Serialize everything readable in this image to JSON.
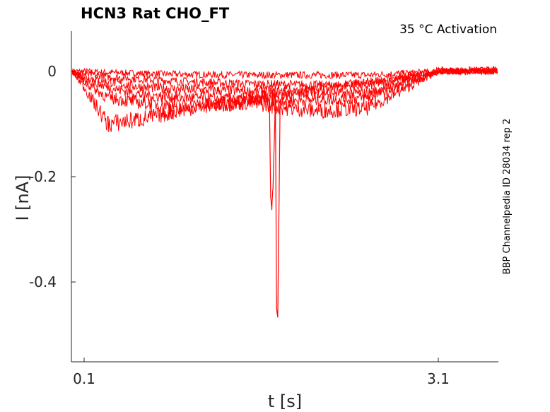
{
  "chart_data": {
    "type": "line",
    "title": "HCN3  Rat  CHO_FT",
    "annotation": "35 °C  Activation",
    "side_label": "BBP Channelpedia ID 28034 rep 2",
    "xlabel": "t [s]",
    "ylabel": "I [nA]",
    "xlim": [
      -0.0,
      3.6
    ],
    "ylim": [
      -0.55,
      0.08
    ],
    "xticks": [
      0.1,
      3.1
    ],
    "xtick_labels": [
      "0.1",
      "3.1"
    ],
    "yticks": [
      0,
      -0.2,
      -0.4
    ],
    "ytick_labels": [
      "0",
      "-0.2",
      "-0.4"
    ],
    "grid": false,
    "line_color": "#ff0000",
    "series": [
      {
        "x": [
          0.0,
          0.1,
          0.3,
          0.6,
          1.0,
          1.5,
          2.0,
          2.5,
          3.1,
          3.6
        ],
        "y": [
          0.0,
          0.0,
          -0.002,
          -0.004,
          -0.006,
          -0.007,
          -0.007,
          -0.007,
          0.0,
          0.0
        ]
      },
      {
        "x": [
          0.0,
          0.1,
          0.3,
          0.6,
          1.0,
          1.5,
          2.0,
          2.5,
          3.1,
          3.6
        ],
        "y": [
          0.0,
          -0.005,
          -0.01,
          -0.015,
          -0.02,
          -0.024,
          -0.026,
          -0.028,
          0.002,
          0.003
        ]
      },
      {
        "x": [
          0.0,
          0.1,
          0.3,
          0.6,
          1.0,
          1.5,
          2.0,
          2.5,
          3.1,
          3.6
        ],
        "y": [
          0.0,
          -0.01,
          -0.02,
          -0.03,
          -0.035,
          -0.038,
          -0.04,
          -0.042,
          0.0,
          0.002
        ]
      },
      {
        "x": [
          0.0,
          0.1,
          0.3,
          0.6,
          1.0,
          1.5,
          2.0,
          2.5,
          3.1,
          3.6
        ],
        "y": [
          0.0,
          -0.015,
          -0.03,
          -0.045,
          -0.05,
          -0.055,
          -0.055,
          -0.05,
          0.0,
          0.0
        ]
      },
      {
        "x": [
          0.0,
          0.1,
          0.3,
          0.6,
          0.9,
          1.2,
          1.5,
          1.8,
          2.1,
          2.5,
          3.1,
          3.6
        ],
        "y": [
          0.0,
          -0.02,
          -0.05,
          -0.06,
          -0.065,
          -0.065,
          -0.06,
          -0.07,
          -0.075,
          -0.07,
          0.0,
          0.0
        ]
      },
      {
        "x": [
          0.0,
          0.1,
          0.3,
          0.45,
          0.6,
          0.8,
          1.0,
          3.1,
          3.6
        ],
        "y": [
          0.0,
          -0.03,
          -0.1,
          -0.095,
          -0.09,
          -0.08,
          -0.07,
          0.0,
          0.0
        ]
      },
      {
        "x": [
          1.6,
          1.67,
          1.68,
          1.69,
          1.7,
          1.72,
          1.73,
          1.74,
          1.76,
          1.8
        ],
        "y": [
          -0.03,
          -0.06,
          -0.24,
          -0.26,
          -0.22,
          -0.05,
          -0.45,
          -0.47,
          -0.06,
          -0.03
        ]
      }
    ]
  }
}
